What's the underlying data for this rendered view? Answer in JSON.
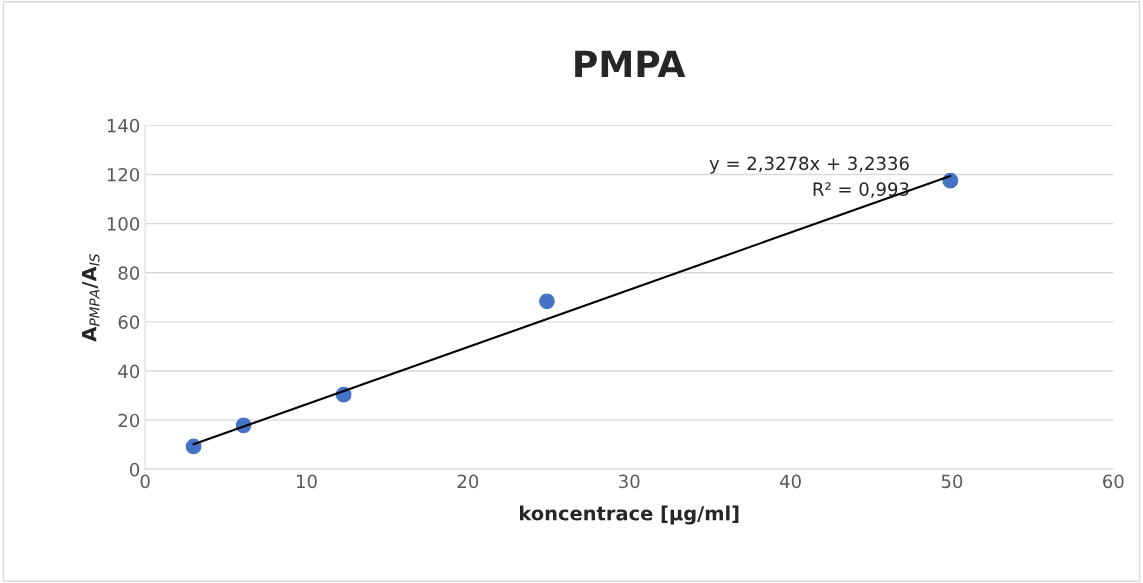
{
  "chart_data": {
    "type": "scatter",
    "title": "PMPA",
    "xlabel": "koncentrace [µg/ml]",
    "ylabel": "A$_{PMPA}$/A$_{IS}$",
    "series": [
      {
        "color": "#4472c4",
        "x": [
          3,
          6.1,
          12.3,
          24.9,
          49.9
        ],
        "values": [
          9.3,
          17.9,
          30.4,
          68.4,
          117.5
        ],
        "marker": "circle"
      },
      {
        "type": "line",
        "color": "#000000",
        "x": [
          3,
          49.9
        ],
        "values": [
          10.2,
          119.4
        ],
        "line_style": "solid",
        "marker": "none"
      }
    ],
    "annotations": [
      "y = 2,3278x + 3,2336",
      "R² = 0,993"
    ],
    "xlim": [
      0,
      60
    ],
    "xticks": [
      0,
      10,
      20,
      30,
      40,
      50,
      60
    ],
    "ylim": [
      0,
      140
    ],
    "yticks": [
      0,
      20,
      40,
      60,
      80,
      100,
      120,
      140
    ],
    "grid": "y",
    "legend": false
  }
}
